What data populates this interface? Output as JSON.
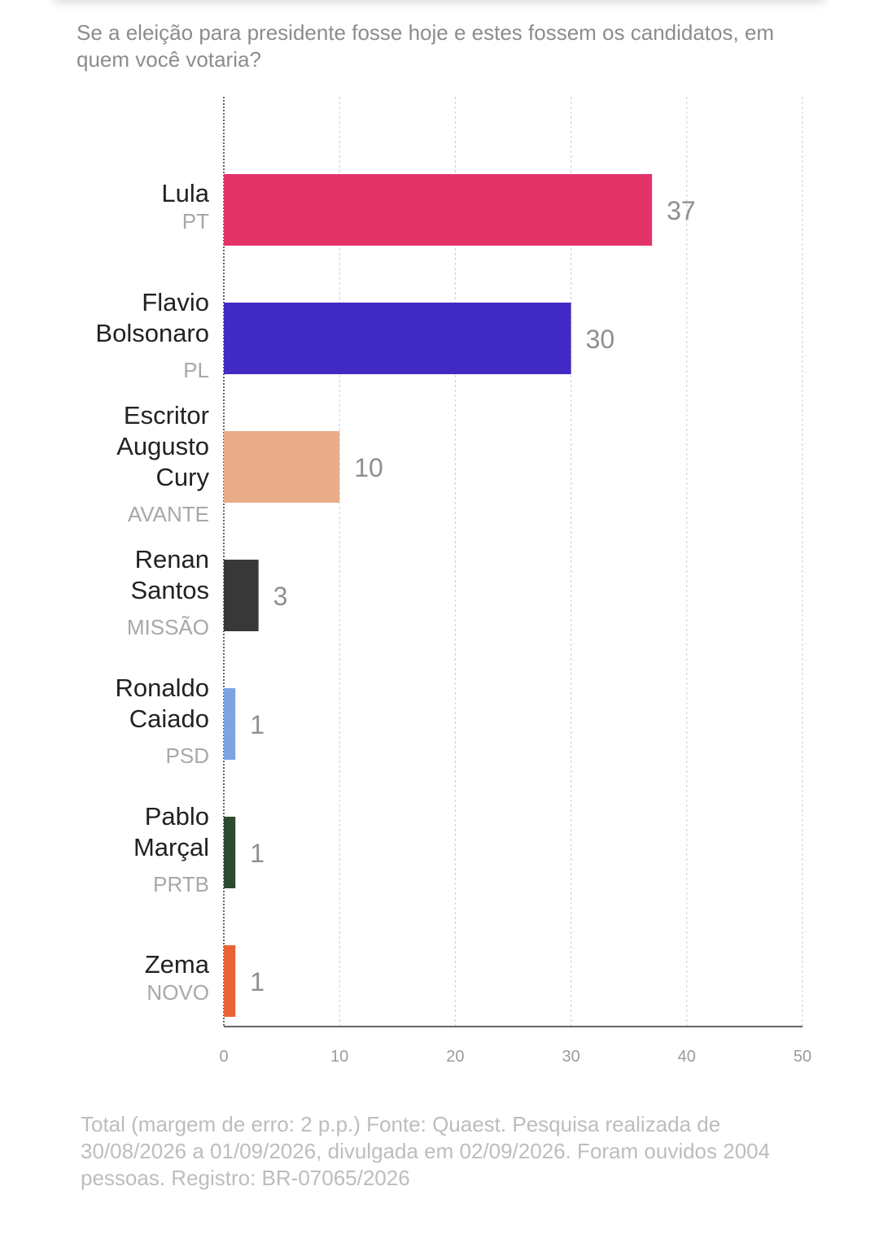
{
  "question": "Se a eleição para presidente fosse hoje e estes fossem os candidatos, em quem você votaria?",
  "footer": "Total (margem de erro: 2 p.p.) Fonte: Quaest. Pesquisa realizada de 30/08/2026 a 01/09/2026, divulgada em 02/09/2026. Foram ouvidos 2004 pessoas. Registro: BR-07065/2026",
  "chart_data": {
    "type": "bar",
    "orientation": "horizontal",
    "title": "",
    "xlabel": "",
    "ylabel": "",
    "xlim": [
      0,
      50
    ],
    "xticks": [
      0,
      10,
      20,
      30,
      40,
      50
    ],
    "grid": true,
    "categories": [
      {
        "name": [
          "Lula"
        ],
        "party": "PT",
        "value": 37,
        "color": "#e3346a"
      },
      {
        "name": [
          "Flavio",
          "Bolsonaro"
        ],
        "party": "PL",
        "value": 30,
        "color": "#402ac3"
      },
      {
        "name": [
          "Escritor",
          "Augusto",
          "Cury"
        ],
        "party": "AVANTE",
        "value": 10,
        "color": "#eaab88"
      },
      {
        "name": [
          "Renan",
          "Santos"
        ],
        "party": "MISSÃO",
        "value": 3,
        "color": "#383838"
      },
      {
        "name": [
          "Ronaldo",
          "Caiado"
        ],
        "party": "PSD",
        "value": 1,
        "color": "#7da3e1"
      },
      {
        "name": [
          "Pablo",
          "Marçal"
        ],
        "party": "PRTB",
        "value": 1,
        "color": "#2e4a2e"
      },
      {
        "name": [
          "Zema"
        ],
        "party": "NOVO",
        "value": 1,
        "color": "#eb6235"
      }
    ]
  }
}
